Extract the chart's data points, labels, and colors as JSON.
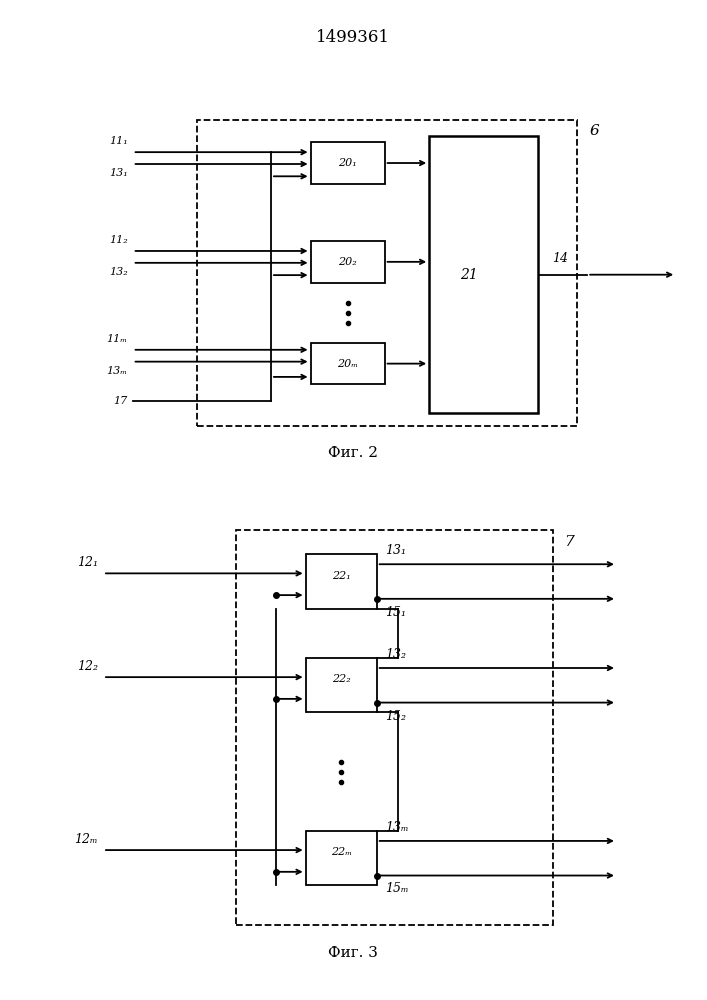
{
  "title": "1499361",
  "fig1_caption": "Фиг. 2",
  "fig2_caption": "Фиг. 3",
  "bg_color": "#ffffff",
  "line_color": "#000000"
}
